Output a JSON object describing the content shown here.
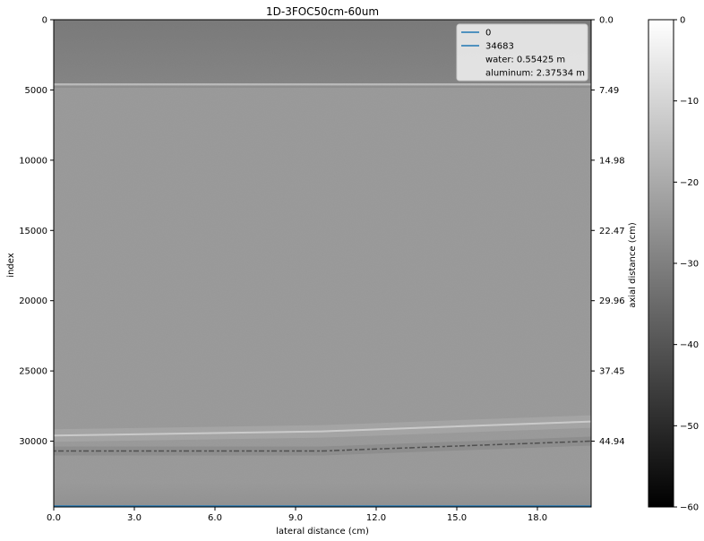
{
  "chart_data": {
    "type": "heatmap",
    "title": "1D-3FOC50cm-60um",
    "xlabel": "lateral distance (cm)",
    "ylabel": "index",
    "y2label": "axial distance (cm)",
    "xlim": [
      0,
      20
    ],
    "ylim": [
      34683,
      0
    ],
    "x_ticks": [
      "0.0",
      "3.0",
      "6.0",
      "9.0",
      "12.0",
      "15.0",
      "18.0"
    ],
    "x_tick_values": [
      0,
      3,
      6,
      9,
      12,
      15,
      18
    ],
    "y_ticks": [
      "0",
      "5000",
      "10000",
      "15000",
      "20000",
      "25000",
      "30000"
    ],
    "y_tick_values": [
      0,
      5000,
      10000,
      15000,
      20000,
      25000,
      30000
    ],
    "y2_ticks": [
      "0.0",
      "7.49",
      "14.98",
      "22.47",
      "29.96",
      "37.45",
      "44.94"
    ],
    "y2_tick_values": [
      0,
      5000,
      10000,
      15000,
      20000,
      25000,
      30000
    ],
    "colorbar": {
      "range": [
        -60,
        0
      ],
      "ticks": [
        "0",
        "−10",
        "−20",
        "−30",
        "−40",
        "−50",
        "−60"
      ],
      "tick_values": [
        0,
        -10,
        -20,
        -30,
        -40,
        -50,
        -60
      ],
      "colormap": "gray"
    },
    "legend": {
      "placement": "upper right",
      "entries": [
        {
          "label": "0",
          "color": "#1f77b4",
          "line": true
        },
        {
          "label": "34683",
          "color": "#1f77b4",
          "line": true
        },
        {
          "label": "water: 0.55425 m",
          "line": false
        },
        {
          "label": "aluminum: 2.37534 m",
          "line": false
        }
      ]
    },
    "features": {
      "water_interface_index": 4650,
      "back_wall_curve": [
        [
          0,
          29600
        ],
        [
          10,
          29300
        ],
        [
          20,
          28600
        ]
      ],
      "back_wall_curve_2": [
        [
          0,
          30700
        ],
        [
          10,
          30700
        ],
        [
          20,
          30000
        ]
      ]
    }
  }
}
